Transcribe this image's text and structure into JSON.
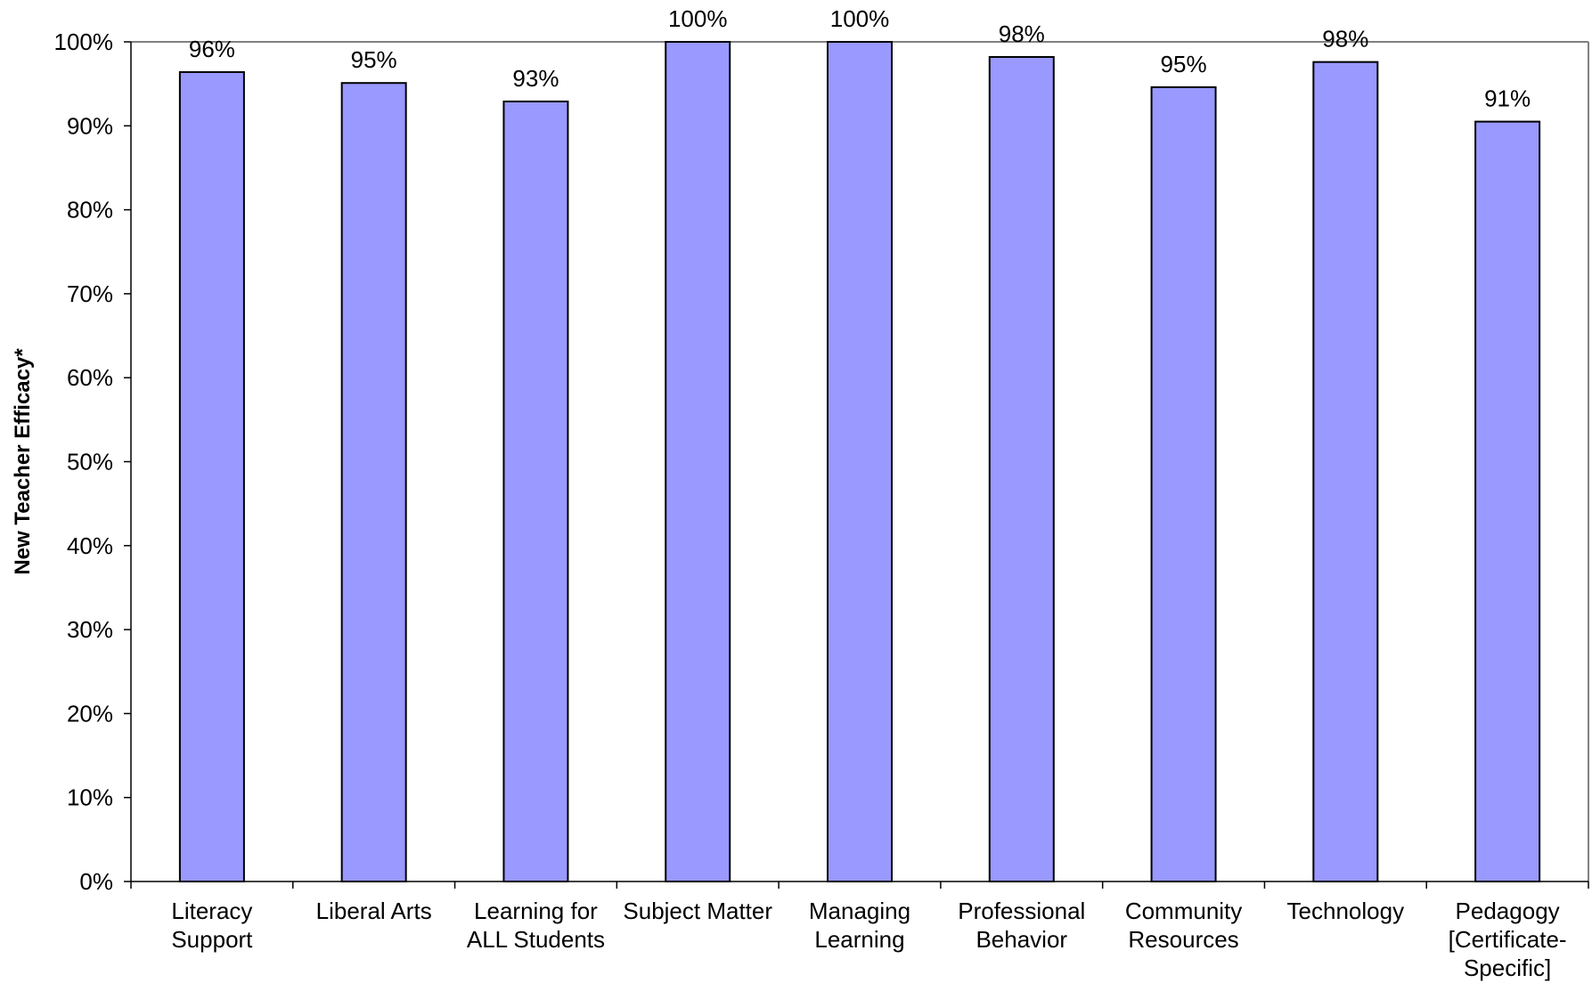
{
  "chart_data": {
    "type": "bar",
    "title": "",
    "xlabel": "",
    "ylabel": "New Teacher Efficacy*",
    "ylim": [
      0,
      100
    ],
    "yticks": [
      "0%",
      "10%",
      "20%",
      "30%",
      "40%",
      "50%",
      "60%",
      "70%",
      "80%",
      "90%",
      "100%"
    ],
    "grid": false,
    "legend": "none",
    "bar_color": "#9999ff",
    "categories": [
      [
        "Literacy",
        "Support"
      ],
      [
        "Liberal Arts"
      ],
      [
        "Learning for",
        "ALL Students"
      ],
      [
        "Subject Matter"
      ],
      [
        "Managing",
        "Learning"
      ],
      [
        "Professional",
        "Behavior"
      ],
      [
        "Community",
        "Resources"
      ],
      [
        "Technology"
      ],
      [
        "Pedagogy",
        "[Certificate-",
        "Specific]"
      ]
    ],
    "values": [
      96.4,
      95.1,
      92.9,
      100,
      100,
      98.2,
      94.6,
      97.6,
      90.5
    ],
    "data_labels": [
      "96%",
      "95%",
      "93%",
      "100%",
      "100%",
      "98%",
      "95%",
      "98%",
      "91%"
    ]
  }
}
